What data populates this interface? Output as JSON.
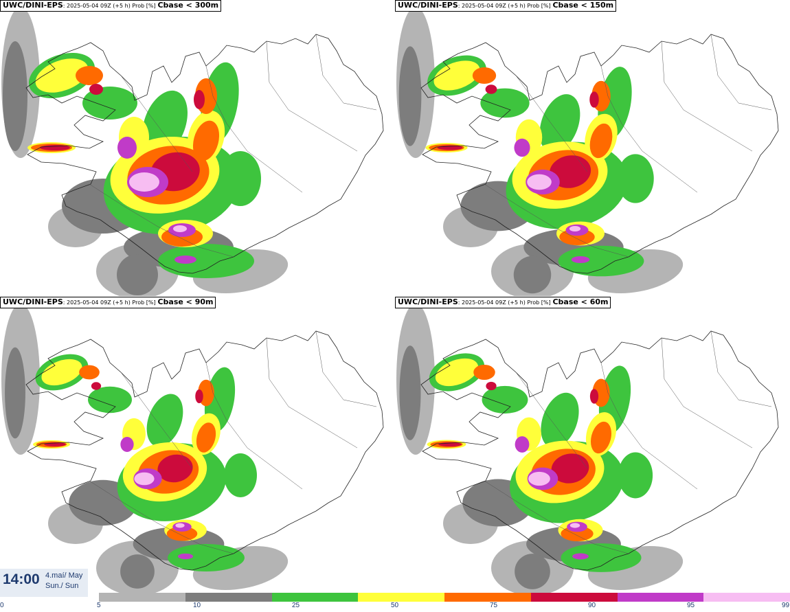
{
  "panels": [
    {
      "model": "UWC/DINI-EPS",
      "run": ": 2025-05-04 09Z (+5 h) Prob [%]",
      "variable": "Cbase < 300m"
    },
    {
      "model": "UWC/DINI-EPS",
      "run": ": 2025-05-04 09Z (+5 h) Prob [%]",
      "variable": "Cbase < 150m"
    },
    {
      "model": "UWC/DINI-EPS",
      "run": ": 2025-05-04 09Z (+5 h) Prob [%]",
      "variable": "Cbase < 90m"
    },
    {
      "model": "UWC/DINI-EPS",
      "run": ": 2025-05-04 09Z (+5 h) Prob [%]",
      "variable": "Cbase < 60m"
    }
  ],
  "time": {
    "clock": "14:00",
    "date_line1": "4.maí/ May",
    "date_line2": "Sun./ Sun"
  },
  "legend": {
    "ticks": [
      "0",
      "5",
      "10",
      "25",
      "50",
      "75",
      "90",
      "95",
      "99"
    ],
    "colors": [
      "#b4b4b4",
      "#7d7d7d",
      "#3ec43e",
      "#ffff3a",
      "#ff6a00",
      "#cc0b3c",
      "#c03bc8",
      "#f7bdf2"
    ]
  }
}
